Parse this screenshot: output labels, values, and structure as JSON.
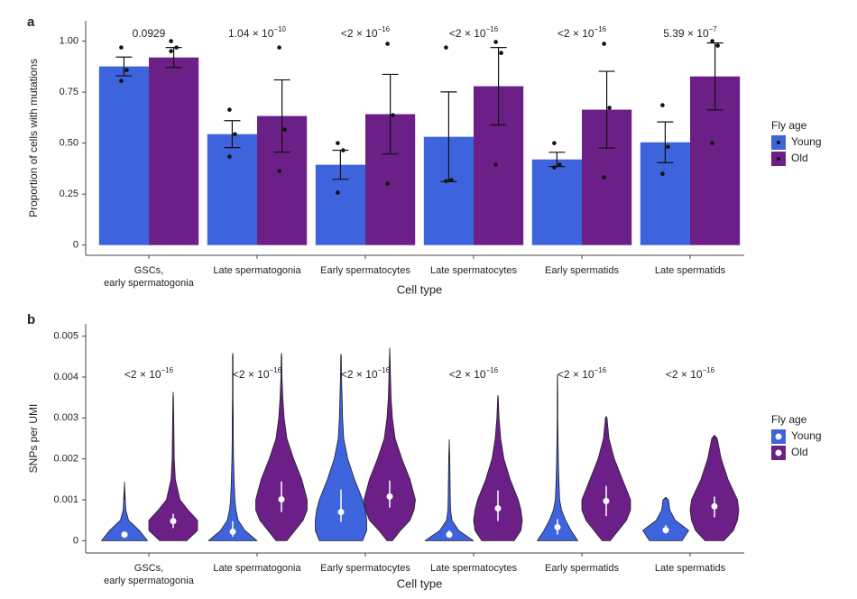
{
  "chart_data": [
    {
      "type": "bar",
      "panel_label": "a",
      "y_label": "Proportion of cells with mutations",
      "x_label": "Cell type",
      "legend_title": "Fly age",
      "legend": "right",
      "categories": [
        [
          "GSCs,",
          "early spermatogonia"
        ],
        "Late spermatogonia",
        "Early spermatocytes",
        "Late spermatocytes",
        "Early spermatids",
        "Late spermatids"
      ],
      "ylim": [
        -0.05,
        1.1
      ],
      "yticks": [
        0,
        0.25,
        {
          "value": 0.5,
          "label": "0.50"
        },
        0.75,
        {
          "value": 1,
          "label": "1.00"
        }
      ],
      "series": [
        {
          "name": "Young",
          "color": "#3d63dd",
          "values": [
            0.876,
            0.544,
            0.394,
            0.531,
            0.42,
            0.504
          ],
          "errors": [
            0.046,
            0.066,
            0.071,
            0.22,
            0.035,
            0.1
          ],
          "points": [
            [
              0.969,
              0.858,
              0.805
            ],
            [
              0.664,
              0.544,
              0.434
            ],
            [
              0.5,
              0.465,
              0.257
            ],
            [
              0.969,
              0.319,
              0.314
            ],
            [
              0.5,
              0.394,
              0.381
            ],
            [
              0.686,
              0.482,
              0.35
            ]
          ]
        },
        {
          "name": "Old",
          "color": "#6b1f87",
          "values": [
            0.92,
            0.633,
            0.642,
            0.779,
            0.664,
            0.827
          ],
          "errors": [
            0.049,
            0.177,
            0.195,
            0.19,
            0.188,
            0.164
          ],
          "points": [
            [
              1.0,
              0.969,
              0.951
            ],
            [
              0.969,
              0.566,
              0.363
            ],
            [
              0.987,
              0.637,
              0.301
            ],
            [
              0.996,
              0.942,
              0.394
            ],
            [
              0.987,
              0.673,
              0.332
            ],
            [
              1.0,
              0.978,
              0.5
            ]
          ]
        }
      ],
      "annotations": [
        {
          "base": "0.0929"
        },
        {
          "base": "1.04 × 10",
          "exponent": "−10"
        },
        {
          "base": "<2 × 10",
          "exponent": "−16"
        },
        {
          "base": "<2 × 10",
          "exponent": "−16"
        },
        {
          "base": "<2 × 10",
          "exponent": "−16"
        },
        {
          "base": "5.39 × 10",
          "exponent": "−7"
        }
      ]
    },
    {
      "type": "violin",
      "panel_label": "b",
      "y_label": "SNPs per UMI",
      "x_label": "Cell type",
      "legend_title": "Fly age",
      "legend": "right",
      "categories": [
        [
          "GSCs,",
          "early spermatogonia"
        ],
        "Late spermatogonia",
        "Early spermatocytes",
        "Late spermatocytes",
        "Early spermatids",
        "Late spermatids"
      ],
      "ylim": [
        -0.0003,
        0.0053
      ],
      "yticks": [
        0,
        0.001,
        0.002,
        0.003,
        0.004,
        0.005
      ],
      "density_levels": [
        0,
        0.00025,
        0.0005,
        0.00075,
        0.001,
        0.0015,
        0.002,
        0.0025,
        0.003,
        0.0035,
        0.004,
        0.0045
      ],
      "series": [
        {
          "name": "Young",
          "color": "#3d63dd",
          "violins": [
            {
              "q1": 0.0001,
              "median": 0.00015,
              "q3": 0.0002,
              "max": 0.00143,
              "widths": [
                0.85,
                0.55,
                0.15,
                0.05,
                0.03
              ]
            },
            {
              "q1": 0.0001,
              "median": 0.00022,
              "q3": 0.00048,
              "max": 0.00458,
              "widths": [
                0.9,
                0.45,
                0.2,
                0.12,
                0.08,
                0.05,
                0.03,
                0.02,
                0.02,
                0.01,
                0.01,
                0.01
              ]
            },
            {
              "q1": 0.00046,
              "median": 0.0007,
              "q3": 0.00125,
              "max": 0.00456,
              "widths": [
                0.8,
                0.95,
                0.95,
                0.9,
                0.8,
                0.5,
                0.25,
                0.1,
                0.06,
                0.04,
                0.02,
                0.01
              ]
            },
            {
              "q1": 0.0001,
              "median": 0.00015,
              "q3": 0.00025,
              "max": 0.00247,
              "widths": [
                0.9,
                0.35,
                0.1,
                0.05,
                0.04,
                0.03,
                0.02
              ]
            },
            {
              "q1": 0.00015,
              "median": 0.00033,
              "q3": 0.00053,
              "max": 0.00405,
              "widths": [
                0.75,
                0.5,
                0.3,
                0.15,
                0.08,
                0.05,
                0.03,
                0.02,
                0.01,
                0.01,
                0.005
              ]
            },
            {
              "q1": 0.00018,
              "median": 0.00026,
              "q3": 0.00038,
              "max": 0.00106,
              "widths": [
                0.6,
                0.85,
                0.35,
                0.15,
                0.1
              ]
            }
          ]
        },
        {
          "name": "Old",
          "color": "#6b1f87",
          "violins": [
            {
              "q1": 0.00031,
              "median": 0.00048,
              "q3": 0.00066,
              "max": 0.00363,
              "widths": [
                0.5,
                0.9,
                0.9,
                0.55,
                0.25,
                0.08,
                0.04,
                0.03,
                0.02,
                0.01
              ]
            },
            {
              "q1": 0.0007,
              "median": 0.00101,
              "q3": 0.00145,
              "max": 0.00458,
              "widths": [
                0.2,
                0.5,
                0.8,
                0.95,
                0.95,
                0.75,
                0.45,
                0.2,
                0.1,
                0.05,
                0.02,
                0.01
              ]
            },
            {
              "q1": 0.00081,
              "median": 0.00108,
              "q3": 0.00147,
              "max": 0.00471,
              "widths": [
                0.1,
                0.4,
                0.75,
                0.9,
                0.95,
                0.75,
                0.45,
                0.2,
                0.1,
                0.05,
                0.03,
                0.01
              ]
            },
            {
              "q1": 0.00048,
              "median": 0.00079,
              "q3": 0.00123,
              "max": 0.00355,
              "widths": [
                0.6,
                0.85,
                0.9,
                0.85,
                0.75,
                0.45,
                0.22,
                0.1,
                0.04,
                0.01
              ]
            },
            {
              "q1": 0.0006,
              "median": 0.00097,
              "q3": 0.00134,
              "max": 0.00304,
              "widths": [
                0.15,
                0.45,
                0.75,
                0.9,
                0.9,
                0.6,
                0.3,
                0.1,
                0.03
              ]
            },
            {
              "q1": 0.00057,
              "median": 0.00084,
              "q3": 0.00108,
              "max": 0.00258,
              "widths": [
                0.35,
                0.7,
                0.85,
                0.9,
                0.85,
                0.5,
                0.25,
                0.1
              ]
            }
          ]
        }
      ],
      "annotations": [
        {
          "base": "<2 × 10",
          "exponent": "−16"
        },
        {
          "base": "<2 × 10",
          "exponent": "−16"
        },
        {
          "base": "<2 × 10",
          "exponent": "−16"
        },
        {
          "base": "<2 × 10",
          "exponent": "−16"
        },
        {
          "base": "<2 × 10",
          "exponent": "−16"
        },
        {
          "base": "<2 × 10",
          "exponent": "−16"
        }
      ]
    }
  ]
}
